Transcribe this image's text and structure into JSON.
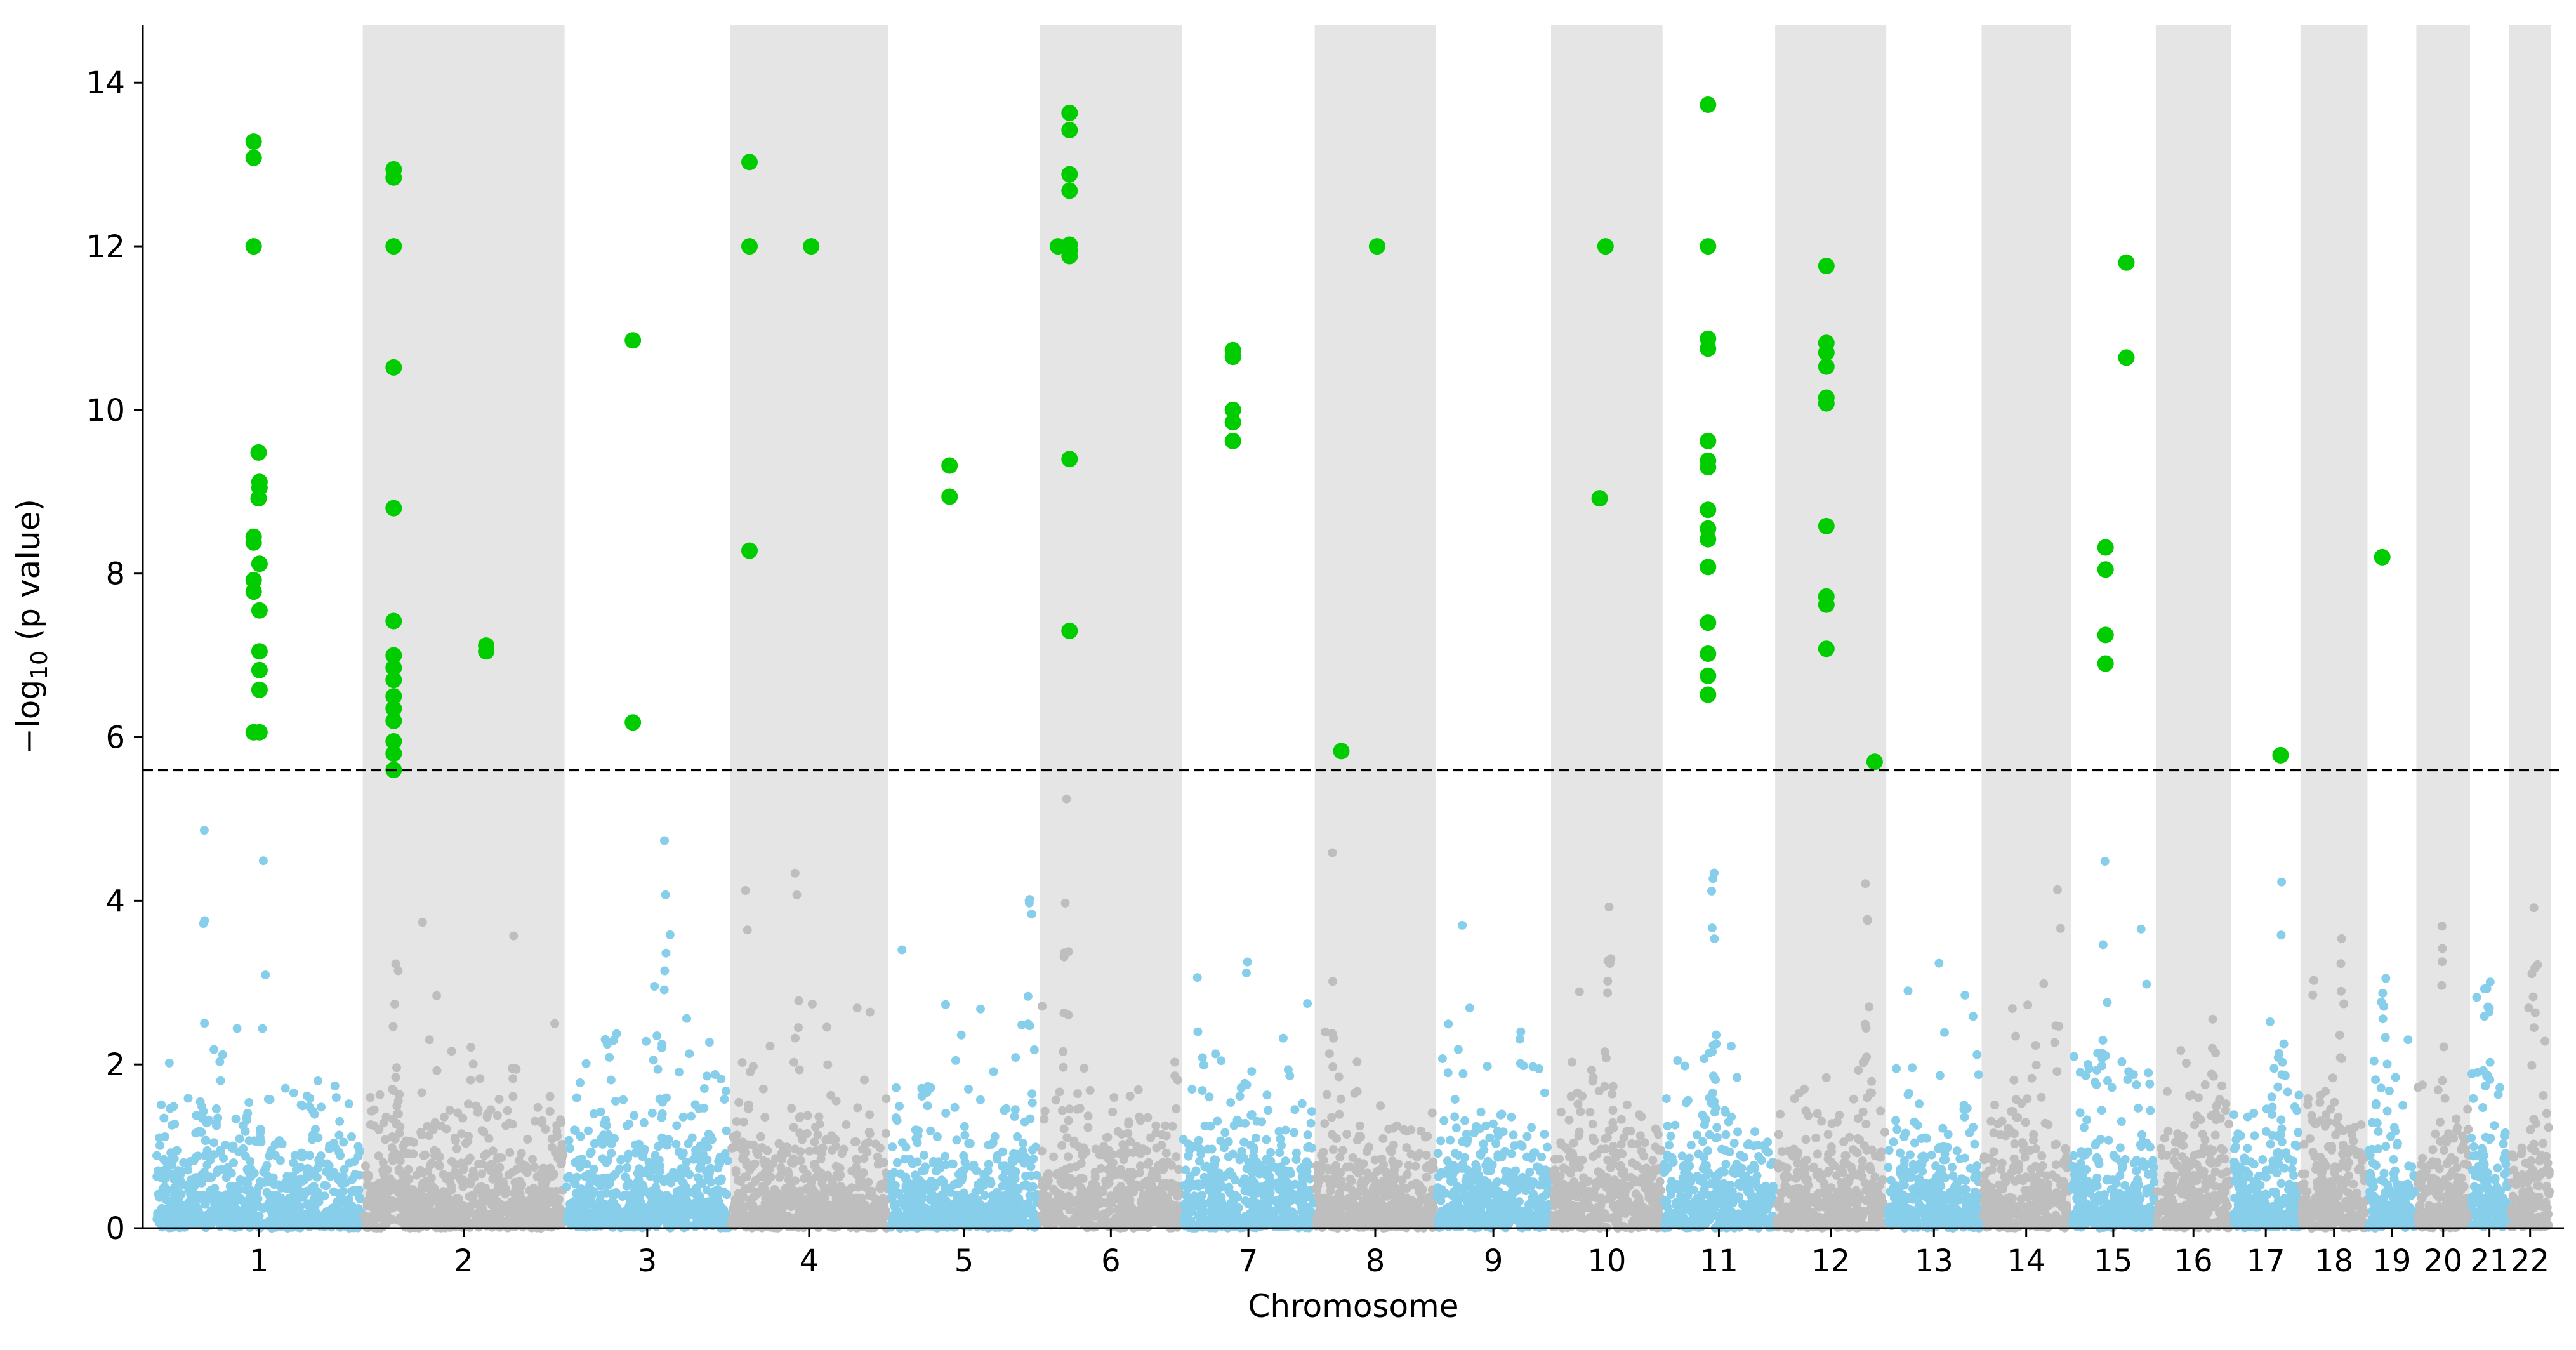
{
  "chart_data": {
    "type": "scatter",
    "subtype": "manhattan",
    "xlabel": "Chromosome",
    "ylabel_prefix": "−log",
    "ylabel_sub": "10",
    "ylabel_suffix": " (p value)",
    "ylim": [
      0,
      14.7
    ],
    "yticks": [
      "0",
      "2",
      "4",
      "6",
      "8",
      "10",
      "12",
      "14"
    ],
    "threshold": 5.6,
    "colors": {
      "odd": "#87ceeb",
      "even": "#bebebe",
      "significant": "#00cc00",
      "band": "#e5e5e5",
      "threshold": "#000000"
    },
    "chromosomes": [
      {
        "label": "1",
        "start": 0.0,
        "length": 248.9,
        "peaks": [
          [
            60,
            0.8
          ],
          [
            130,
            0.75
          ]
        ]
      },
      {
        "label": "2",
        "start": 248.9,
        "length": 242.2,
        "peaks": [
          [
            40,
            1.0
          ],
          [
            180,
            0.7
          ]
        ]
      },
      {
        "label": "3",
        "start": 491.1,
        "length": 198.3,
        "peaks": [
          [
            50,
            0.85
          ],
          [
            120,
            0.7
          ]
        ]
      },
      {
        "label": "4",
        "start": 689.4,
        "length": 190.2,
        "peaks": [
          [
            20,
            0.9
          ],
          [
            80,
            0.7
          ]
        ]
      },
      {
        "label": "5",
        "start": 879.6,
        "length": 181.5,
        "peaks": [
          [
            170,
            0.85
          ]
        ]
      },
      {
        "label": "6",
        "start": 1061.1,
        "length": 170.8,
        "peaks": [
          [
            32,
            1.0
          ]
        ]
      },
      {
        "label": "7",
        "start": 1231.9,
        "length": 159.3,
        "peaks": [
          [
            80,
            0.75
          ]
        ]
      },
      {
        "label": "8",
        "start": 1391.2,
        "length": 145.1,
        "peaks": [
          [
            20,
            0.7
          ]
        ]
      },
      {
        "label": "9",
        "start": 1536.3,
        "length": 138.4,
        "peaks": [
          [
            30,
            0.7
          ]
        ]
      },
      {
        "label": "10",
        "start": 1674.7,
        "length": 133.8,
        "peaks": [
          [
            70,
            0.8
          ]
        ]
      },
      {
        "label": "11",
        "start": 1808.5,
        "length": 135.1,
        "peaks": [
          [
            60,
            0.9
          ]
        ]
      },
      {
        "label": "12",
        "start": 1943.6,
        "length": 133.3,
        "peaks": [
          [
            110,
            0.8
          ]
        ]
      },
      {
        "label": "13",
        "start": 2076.9,
        "length": 114.4,
        "peaks": [
          [
            30,
            0.6
          ]
        ]
      },
      {
        "label": "14",
        "start": 2191.3,
        "length": 107.0,
        "peaks": [
          [
            90,
            0.6
          ]
        ]
      },
      {
        "label": "15",
        "start": 2298.3,
        "length": 102.0,
        "peaks": [
          [
            40,
            0.95
          ]
        ]
      },
      {
        "label": "16",
        "start": 2400.3,
        "length": 90.3,
        "peaks": [
          [
            70,
            0.7
          ]
        ]
      },
      {
        "label": "17",
        "start": 2490.6,
        "length": 83.3,
        "peaks": [
          [
            60,
            0.9
          ]
        ]
      },
      {
        "label": "18",
        "start": 2573.9,
        "length": 80.4,
        "peaks": [
          [
            50,
            0.5
          ]
        ]
      },
      {
        "label": "19",
        "start": 2654.3,
        "length": 58.6,
        "peaks": [
          [
            20,
            0.6
          ]
        ]
      },
      {
        "label": "20",
        "start": 2712.9,
        "length": 64.4,
        "peaks": [
          [
            30,
            0.6
          ]
        ]
      },
      {
        "label": "21",
        "start": 2777.3,
        "length": 46.7,
        "peaks": [
          [
            20,
            0.8
          ]
        ]
      },
      {
        "label": "22",
        "start": 2824.0,
        "length": 50.8,
        "peaks": [
          [
            30,
            0.6
          ]
        ]
      }
    ],
    "xlim": [
      -15,
      2890
    ],
    "significant_points": [
      [
        118,
        13.28
      ],
      [
        118,
        13.08
      ],
      [
        118,
        12.0
      ],
      [
        124,
        9.48
      ],
      [
        125,
        9.12
      ],
      [
        125,
        9.05
      ],
      [
        124,
        8.92
      ],
      [
        118,
        8.45
      ],
      [
        118,
        8.38
      ],
      [
        125,
        8.12
      ],
      [
        118,
        7.92
      ],
      [
        118,
        7.78
      ],
      [
        125,
        7.55
      ],
      [
        125,
        7.05
      ],
      [
        125,
        6.82
      ],
      [
        125,
        6.58
      ],
      [
        118,
        6.06
      ],
      [
        125,
        6.06
      ],
      [
        286,
        12.94
      ],
      [
        286,
        12.84
      ],
      [
        286,
        12.0
      ],
      [
        286,
        10.52
      ],
      [
        286,
        8.8
      ],
      [
        286,
        7.42
      ],
      [
        286,
        7.0
      ],
      [
        286,
        6.85
      ],
      [
        286,
        6.7
      ],
      [
        286,
        6.5
      ],
      [
        286,
        6.35
      ],
      [
        286,
        6.2
      ],
      [
        286,
        5.95
      ],
      [
        286,
        5.8
      ],
      [
        286,
        5.6
      ],
      [
        397,
        7.12
      ],
      [
        397,
        7.05
      ],
      [
        573,
        10.85
      ],
      [
        573,
        6.18
      ],
      [
        713,
        13.03
      ],
      [
        713,
        12.0
      ],
      [
        713,
        8.28
      ],
      [
        787,
        12.0
      ],
      [
        953,
        9.32
      ],
      [
        953,
        8.94
      ],
      [
        1083,
        12.0
      ],
      [
        1097,
        13.63
      ],
      [
        1097,
        13.42
      ],
      [
        1097,
        12.88
      ],
      [
        1097,
        12.68
      ],
      [
        1097,
        12.02
      ],
      [
        1097,
        11.95
      ],
      [
        1097,
        11.88
      ],
      [
        1097,
        9.4
      ],
      [
        1097,
        7.3
      ],
      [
        1293,
        10.73
      ],
      [
        1293,
        10.65
      ],
      [
        1293,
        10.0
      ],
      [
        1293,
        9.85
      ],
      [
        1293,
        9.62
      ],
      [
        1466,
        12.0
      ],
      [
        1423,
        5.83
      ],
      [
        1740,
        12.0
      ],
      [
        1733,
        8.92
      ],
      [
        1863,
        13.73
      ],
      [
        1863,
        12.0
      ],
      [
        1863,
        10.87
      ],
      [
        1863,
        10.75
      ],
      [
        1863,
        9.62
      ],
      [
        1863,
        9.38
      ],
      [
        1863,
        9.3
      ],
      [
        1863,
        8.78
      ],
      [
        1863,
        8.55
      ],
      [
        1863,
        8.42
      ],
      [
        1863,
        8.08
      ],
      [
        1863,
        7.4
      ],
      [
        1863,
        7.02
      ],
      [
        1863,
        6.75
      ],
      [
        1863,
        6.52
      ],
      [
        2005,
        11.76
      ],
      [
        2005,
        10.82
      ],
      [
        2005,
        10.7
      ],
      [
        2005,
        10.53
      ],
      [
        2005,
        10.15
      ],
      [
        2005,
        10.08
      ],
      [
        2005,
        8.58
      ],
      [
        2005,
        7.72
      ],
      [
        2005,
        7.62
      ],
      [
        2005,
        7.08
      ],
      [
        2063,
        5.7
      ],
      [
        2340,
        8.32
      ],
      [
        2340,
        8.05
      ],
      [
        2340,
        7.25
      ],
      [
        2340,
        6.9
      ],
      [
        2365,
        11.8
      ],
      [
        2365,
        10.64
      ],
      [
        2550,
        5.78
      ],
      [
        2672,
        8.2
      ]
    ]
  }
}
